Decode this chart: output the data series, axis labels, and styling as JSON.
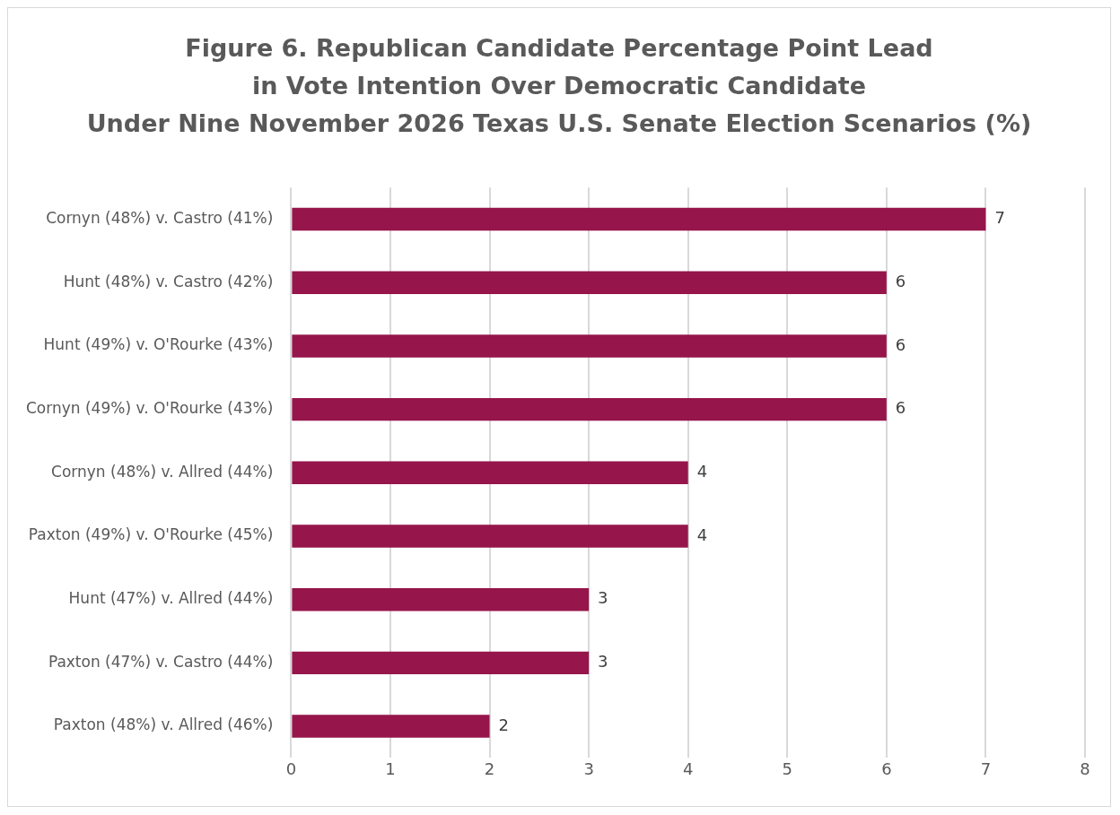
{
  "chart_data": {
    "type": "bar",
    "orientation": "horizontal",
    "title": "Figure 6. Republican Candidate Percentage Point Lead\nin Vote Intention Over Democratic Candidate\nUnder Nine November 2026 Texas U.S. Senate Election Scenarios (%)",
    "categories": [
      "Cornyn (48%) v. Castro (41%)",
      "Hunt (48%) v. Castro (42%)",
      "Hunt (49%) v. O'Rourke (43%)",
      "Cornyn (49%) v. O'Rourke (43%)",
      "Cornyn (48%) v. Allred (44%)",
      "Paxton (49%) v. O'Rourke (45%)",
      "Hunt (47%) v. Allred (44%)",
      "Paxton (47%) v. Castro (44%)",
      "Paxton (48%) v. Allred (46%)"
    ],
    "values": [
      7,
      6,
      6,
      6,
      4,
      4,
      3,
      3,
      2
    ],
    "color": "#96154b",
    "xlim": [
      0,
      8
    ],
    "xticks": [
      0,
      1,
      2,
      3,
      4,
      5,
      6,
      7,
      8
    ],
    "grid": "x",
    "data_labels": true,
    "legend": false
  }
}
